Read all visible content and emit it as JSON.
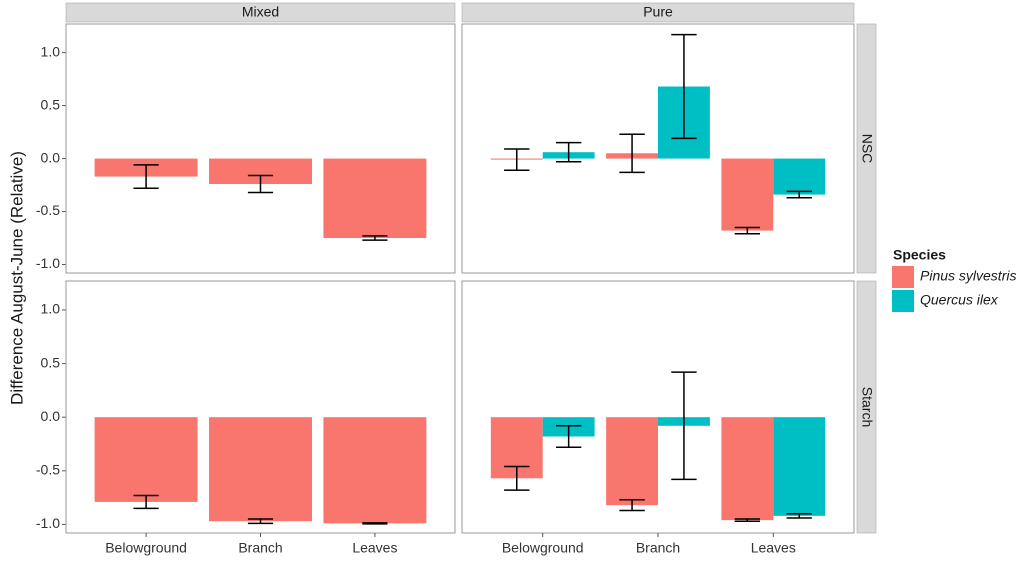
{
  "chart_data": {
    "type": "bar",
    "ylabel": "Difference August-June (Relative)",
    "ylim": [
      -1.08,
      1.27
    ],
    "yticks": [
      {
        "value": 1,
        "label": "1.0"
      },
      {
        "value": 0.5,
        "label": "0.5"
      },
      {
        "value": 0,
        "label": "0.0"
      },
      {
        "value": -0.5,
        "label": "-0.5"
      },
      {
        "value": -1,
        "label": "-1.0"
      }
    ],
    "categories": [
      "Belowground",
      "Branch",
      "Leaves"
    ],
    "legend_title": "Species",
    "series": [
      {
        "name": "Pinus sylvestris",
        "color": "#f8766d"
      },
      {
        "name": "Quercus ilex",
        "color": "#00bfc4"
      }
    ],
    "columns": [
      "Mixed",
      "Pure"
    ],
    "rows": [
      {
        "label": "NSC",
        "panels": [
          {
            "series": [
              {
                "values": [
                  -0.17,
                  -0.24,
                  -0.75
                ],
                "errors": [
                  0.11,
                  0.08,
                  0.02
                ]
              },
              {
                "values": [
                  null,
                  null,
                  null
                ],
                "errors": [
                  null,
                  null,
                  null
                ]
              }
            ]
          },
          {
            "series": [
              {
                "values": [
                  -0.01,
                  0.05,
                  -0.68
                ],
                "errors": [
                  0.1,
                  0.18,
                  0.03
                ]
              },
              {
                "values": [
                  0.06,
                  0.68,
                  -0.34
                ],
                "errors": [
                  0.09,
                  0.49,
                  0.03
                ]
              }
            ]
          }
        ]
      },
      {
        "label": "Starch",
        "panels": [
          {
            "series": [
              {
                "values": [
                  -0.79,
                  -0.97,
                  -0.99
                ],
                "errors": [
                  0.06,
                  0.02,
                  0.005
                ]
              },
              {
                "values": [
                  null,
                  null,
                  null
                ],
                "errors": [
                  null,
                  null,
                  null
                ]
              }
            ]
          },
          {
            "series": [
              {
                "values": [
                  -0.57,
                  -0.82,
                  -0.96
                ],
                "errors": [
                  0.11,
                  0.05,
                  0.01
                ]
              },
              {
                "values": [
                  -0.18,
                  -0.08,
                  -0.92
                ],
                "errors": [
                  0.1,
                  0.5,
                  0.02
                ]
              }
            ]
          }
        ]
      }
    ]
  }
}
